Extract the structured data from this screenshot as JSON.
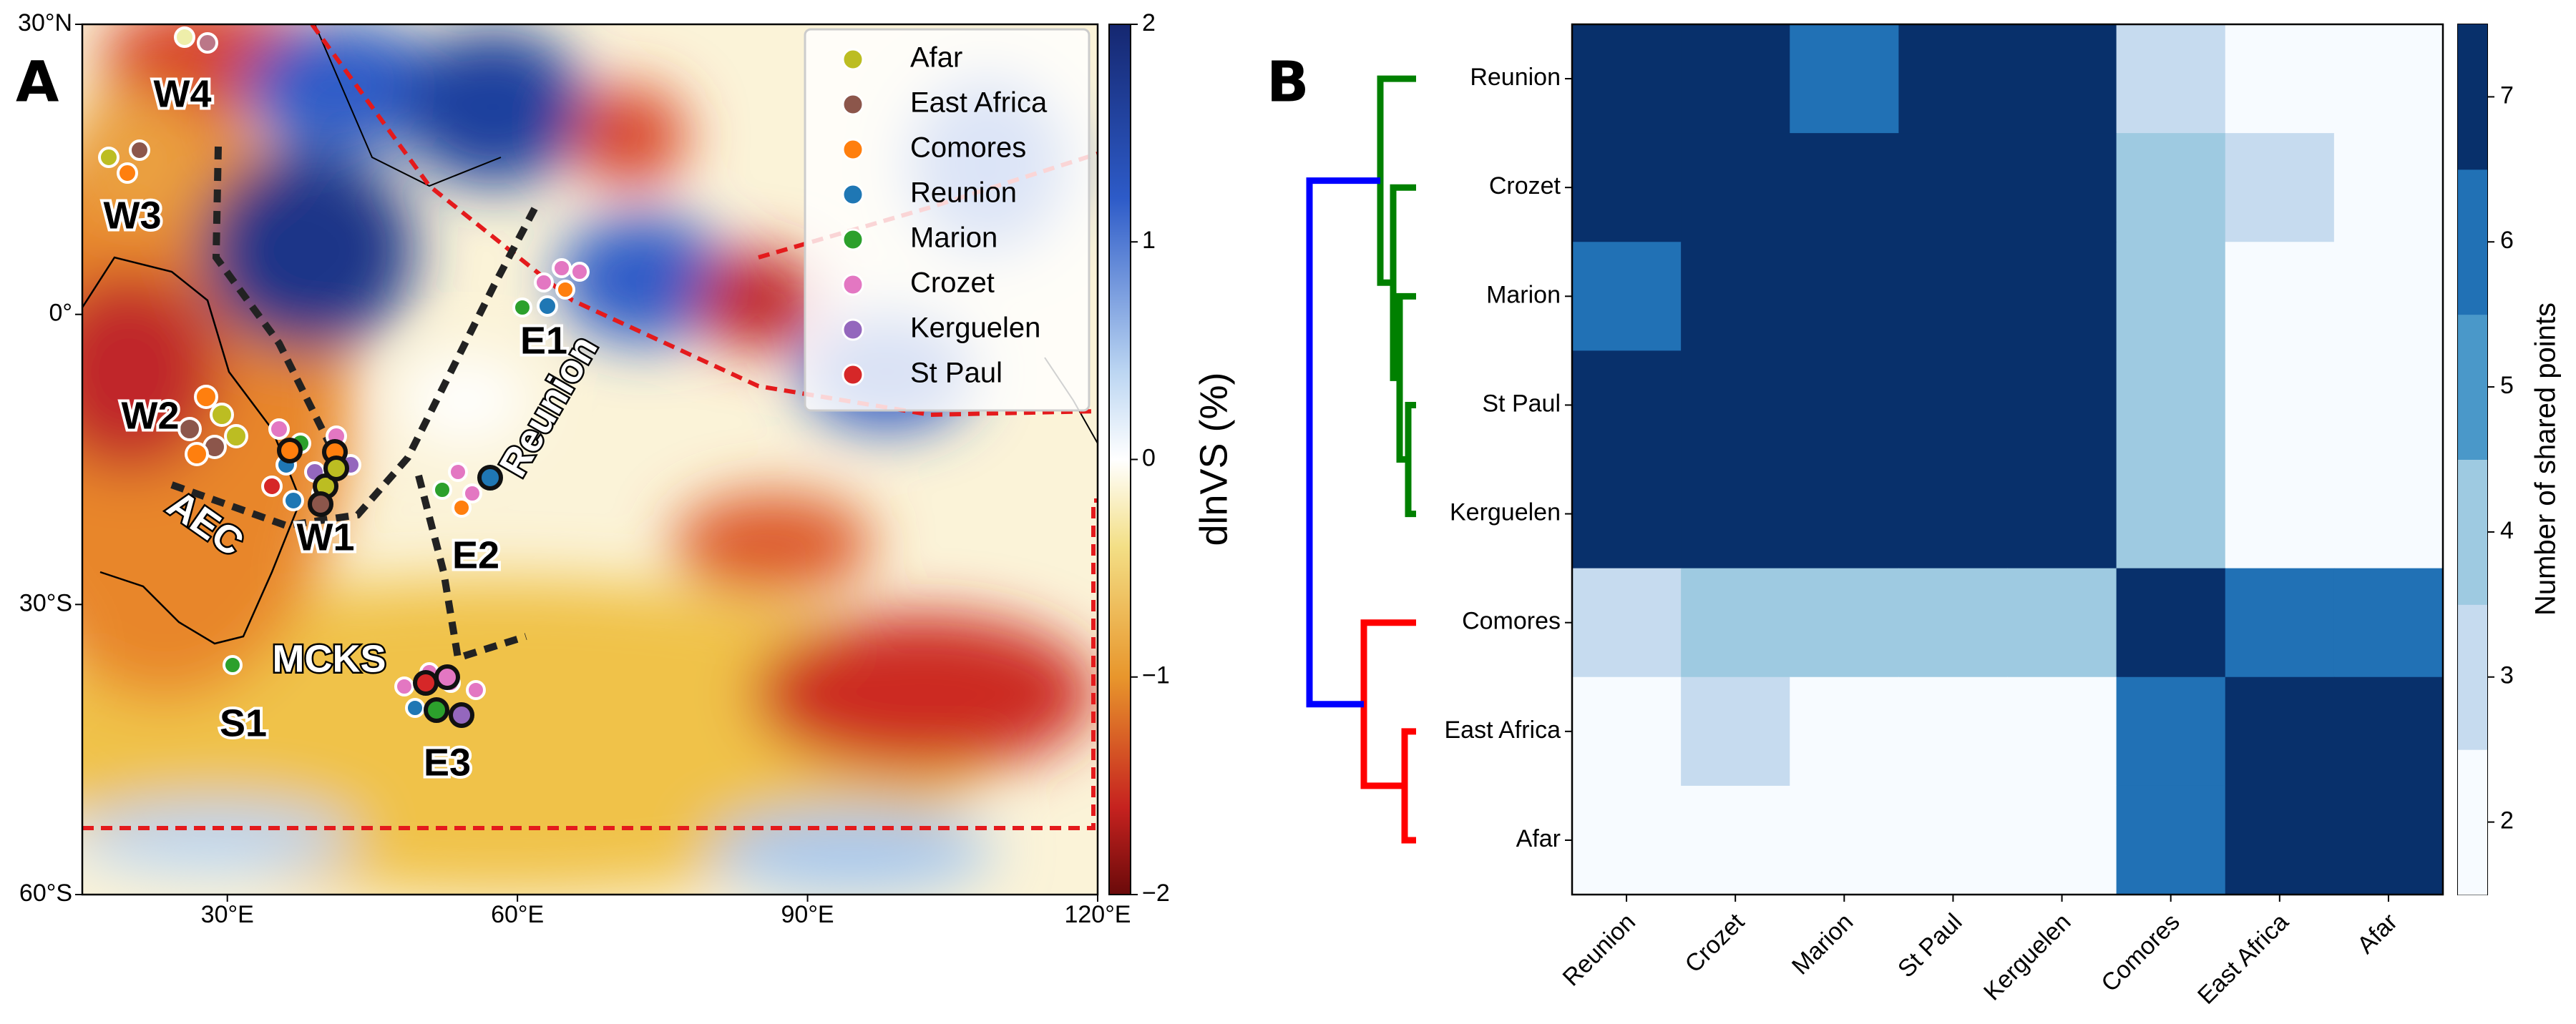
{
  "chart_data": [
    {
      "type": "map",
      "panel_label": "A",
      "xlim": [
        15,
        120
      ],
      "ylim": [
        -60,
        30
      ],
      "xticks": [
        {
          "value": 30,
          "label": "30°E"
        },
        {
          "value": 60,
          "label": "60°E"
        },
        {
          "value": 90,
          "label": "90°E"
        },
        {
          "value": 120,
          "label": "120°E"
        }
      ],
      "yticks": [
        {
          "value": 30,
          "label": "30°N"
        },
        {
          "value": 0,
          "label": "0°"
        },
        {
          "value": -30,
          "label": "30°S"
        },
        {
          "value": -60,
          "label": "60°S"
        }
      ],
      "colorbar_lim": [
        -2,
        2
      ],
      "colorbar_ticks": [
        {
          "value": 2,
          "label": "2"
        },
        {
          "value": 1,
          "label": "1"
        },
        {
          "value": 0,
          "label": "0"
        },
        {
          "value": -1,
          "label": "−1"
        },
        {
          "value": -2,
          "label": "−2"
        }
      ],
      "colorbar_label": "dlnVS (%)",
      "series": [
        {
          "name": "Afar",
          "color": "#bcbd22"
        },
        {
          "name": "East Africa",
          "color": "#8c564b"
        },
        {
          "name": "Comores",
          "color": "#ff7f0e"
        },
        {
          "name": "Reunion",
          "color": "#1f77b4"
        },
        {
          "name": "Marion",
          "color": "#2ca02c"
        },
        {
          "name": "Crozet",
          "color": "#e377c2"
        },
        {
          "name": "Kerguelen",
          "color": "#9467bd"
        },
        {
          "name": "St Paul",
          "color": "#d62728"
        }
      ],
      "annotations": [
        "W4",
        "W3",
        "W2",
        "AEC",
        "W1",
        "E1",
        "Reunion",
        "E2",
        "MCKS",
        "S1",
        "E3"
      ]
    },
    {
      "type": "heatmap",
      "panel_label": "B",
      "rows": [
        "Reunion",
        "Crozet",
        "Marion",
        "St Paul",
        "Kerguelen",
        "Comores",
        "East Africa",
        "Afar"
      ],
      "columns": [
        "Reunion",
        "Crozet",
        "Marion",
        "St Paul",
        "Kerguelen",
        "Comores",
        "East Africa",
        "Afar"
      ],
      "values": [
        [
          7,
          7,
          6,
          7,
          7,
          3,
          2,
          2
        ],
        [
          7,
          7,
          7,
          7,
          7,
          4,
          3,
          2
        ],
        [
          6,
          7,
          7,
          7,
          7,
          4,
          2,
          2
        ],
        [
          7,
          7,
          7,
          7,
          7,
          4,
          2,
          2
        ],
        [
          7,
          7,
          7,
          7,
          7,
          4,
          2,
          2
        ],
        [
          3,
          4,
          4,
          4,
          4,
          7,
          6,
          6
        ],
        [
          2,
          3,
          2,
          2,
          2,
          6,
          7,
          7
        ],
        [
          2,
          2,
          2,
          2,
          2,
          6,
          7,
          7
        ]
      ],
      "colorbar_lim": [
        1.5,
        7.5
      ],
      "colorbar_ticks": [
        2,
        3,
        4,
        5,
        6,
        7
      ],
      "colors": [
        "#f7fbff",
        "#c6dbef",
        "#9ecae1",
        "#4a98c9",
        "#2171b5",
        "#08306b"
      ],
      "colorbar_label": "Number of shared points"
    }
  ]
}
